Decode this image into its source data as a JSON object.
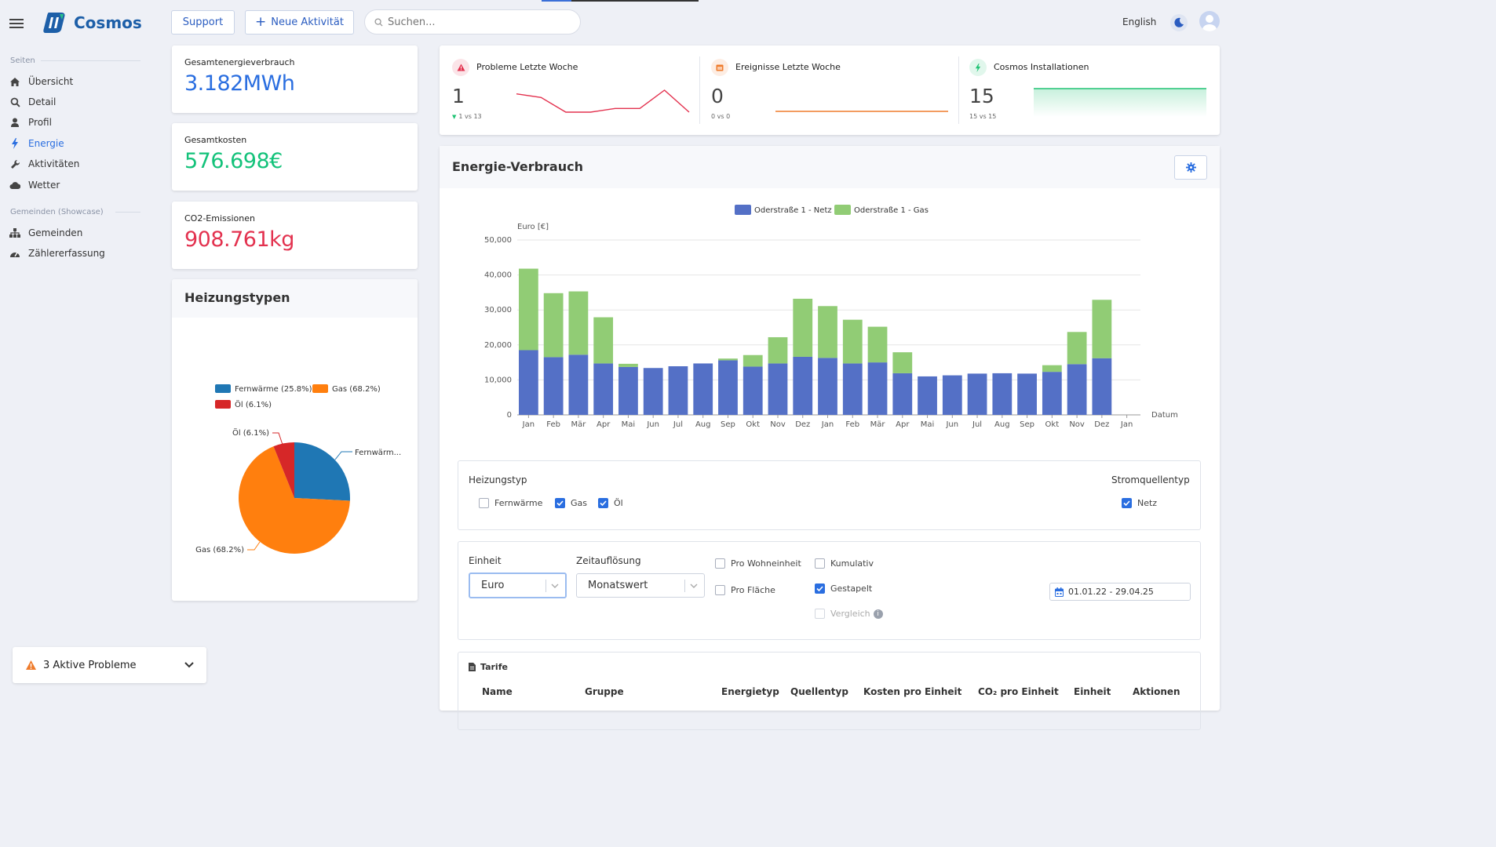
{
  "header": {
    "logo_text": "Cosmos",
    "support_label": "Support",
    "new_activity_label": "Neue Aktivität",
    "search_placeholder": "Suchen...",
    "language": "English"
  },
  "sidebar": {
    "section_pages": "Seiten",
    "items": [
      {
        "label": "Übersicht",
        "icon": "home-icon"
      },
      {
        "label": "Detail",
        "icon": "search-icon"
      },
      {
        "label": "Profil",
        "icon": "user-icon"
      },
      {
        "label": "Energie",
        "icon": "bolt-icon",
        "active": true
      },
      {
        "label": "Aktivitäten",
        "icon": "wrench-icon"
      },
      {
        "label": "Wetter",
        "icon": "cloud-icon"
      }
    ],
    "section_showcase": "Gemeinden (Showcase)",
    "showcase_items": [
      {
        "label": "Gemeinden",
        "icon": "sitemap-icon"
      },
      {
        "label": "Zählererfassung",
        "icon": "gauge-icon"
      }
    ],
    "problems_label": "3 Aktive Probleme"
  },
  "kpis": [
    {
      "label": "Gesamtenergieverbrauch",
      "value": "3.182MWh",
      "color": "#2a6ee0"
    },
    {
      "label": "Gesamtkosten",
      "value": "576.698€",
      "color": "#13c27a"
    },
    {
      "label": "CO2-Emissionen",
      "value": "908.761kg",
      "color": "#e3324f"
    }
  ],
  "heating": {
    "title": "Heizungstypen",
    "legend": [
      {
        "label": "Fernwärme (25.8%)",
        "color": "#1f77b4"
      },
      {
        "label": "Gas (68.2%)",
        "color": "#ff7f0e"
      },
      {
        "label": "Öl (6.1%)",
        "color": "#d62728"
      }
    ],
    "callouts": {
      "oil": "Öl (6.1%)",
      "district": "Fernwärm...",
      "gas": "Gas (68.2%)"
    },
    "slices": [
      {
        "name": "Fernwärme",
        "percent": 25.8,
        "color": "#1f77b4"
      },
      {
        "name": "Gas",
        "percent": 68.2,
        "color": "#ff7f0e"
      },
      {
        "name": "Öl",
        "percent": 6.1,
        "color": "#d62728"
      }
    ]
  },
  "stats": [
    {
      "title": "Probleme Letzte Woche",
      "value": "1",
      "sub": "1 vs 13",
      "color": "#e3324f",
      "icon": "warning-icon"
    },
    {
      "title": "Ereignisse Letzte Woche",
      "value": "0",
      "sub": "0 vs 0",
      "color": "#ef7b2b",
      "icon": "calendar-icon"
    },
    {
      "title": "Cosmos Installationen",
      "value": "15",
      "sub": "15 vs 15",
      "color": "#20c374",
      "icon": "bolt-icon"
    }
  ],
  "energy": {
    "title": "Energie-Verbrauch",
    "filter": {
      "heating_label": "Heizungstyp",
      "heating_options": [
        {
          "label": "Fernwärme",
          "checked": false
        },
        {
          "label": "Gas",
          "checked": true
        },
        {
          "label": "Öl",
          "checked": true
        }
      ],
      "source_label": "Stromquellentyp",
      "source_options": [
        {
          "label": "Netz",
          "checked": true
        }
      ]
    },
    "settings": {
      "unit_label": "Einheit",
      "unit_value": "Euro",
      "time_label": "Zeitauflösung",
      "time_value": "Monatswert",
      "per_unit": "Pro Wohneinheit",
      "per_area": "Pro Fläche",
      "cumulative": "Kumulativ",
      "stacked": "Gestapelt",
      "compare": "Vergleich",
      "date_range": "01.01.22 - 29.04.25"
    },
    "tariffs": {
      "title": "Tarife",
      "columns": [
        "Name",
        "Gruppe",
        "Energietyp",
        "Quellentyp",
        "Kosten pro Einheit",
        "CO₂ pro Einheit",
        "Einheit",
        "Aktionen"
      ]
    }
  },
  "chart_data": {
    "type": "bar",
    "stacked": true,
    "ylabel": "Euro [€]",
    "xlabel": "Datum",
    "ylim": [
      0,
      50000
    ],
    "yticks": [
      "0",
      "10,000",
      "20,000",
      "30,000",
      "40,000",
      "50,000"
    ],
    "categories": [
      "Jan",
      "Feb",
      "Mär",
      "Apr",
      "Mai",
      "Jun",
      "Jul",
      "Aug",
      "Sep",
      "Okt",
      "Nov",
      "Dez",
      "Jan",
      "Feb",
      "Mär",
      "Apr",
      "Mai",
      "Jun",
      "Jul",
      "Aug",
      "Sep",
      "Okt",
      "Nov",
      "Dez",
      "Jan"
    ],
    "legend_position": "top",
    "series": [
      {
        "name": "Oderstraße 1 - Netz",
        "color": "#5470c6",
        "values": [
          18500,
          16500,
          17200,
          14700,
          13700,
          13400,
          13900,
          14700,
          15600,
          13800,
          14700,
          16600,
          16300,
          14700,
          15000,
          11900,
          11000,
          11300,
          11800,
          11900,
          11800,
          12300,
          14500,
          16200,
          0
        ]
      },
      {
        "name": "Oderstraße 1 - Gas",
        "color": "#91cc75",
        "values": [
          23300,
          18300,
          18100,
          13200,
          900,
          0,
          0,
          0,
          500,
          3300,
          7500,
          16600,
          14800,
          12500,
          10200,
          6000,
          0,
          0,
          0,
          0,
          0,
          1900,
          9200,
          16700,
          0
        ]
      }
    ]
  },
  "sparklines": [
    {
      "color": "#e3324f",
      "values": [
        6,
        5,
        1,
        1,
        2,
        2,
        7,
        1
      ]
    },
    {
      "color": "#ef7b2b",
      "values": [
        0,
        0,
        0,
        0,
        0,
        0,
        0,
        0
      ]
    },
    {
      "color": "#20c374",
      "values": [
        15,
        15,
        15,
        15,
        15,
        15,
        15,
        15
      ]
    }
  ]
}
